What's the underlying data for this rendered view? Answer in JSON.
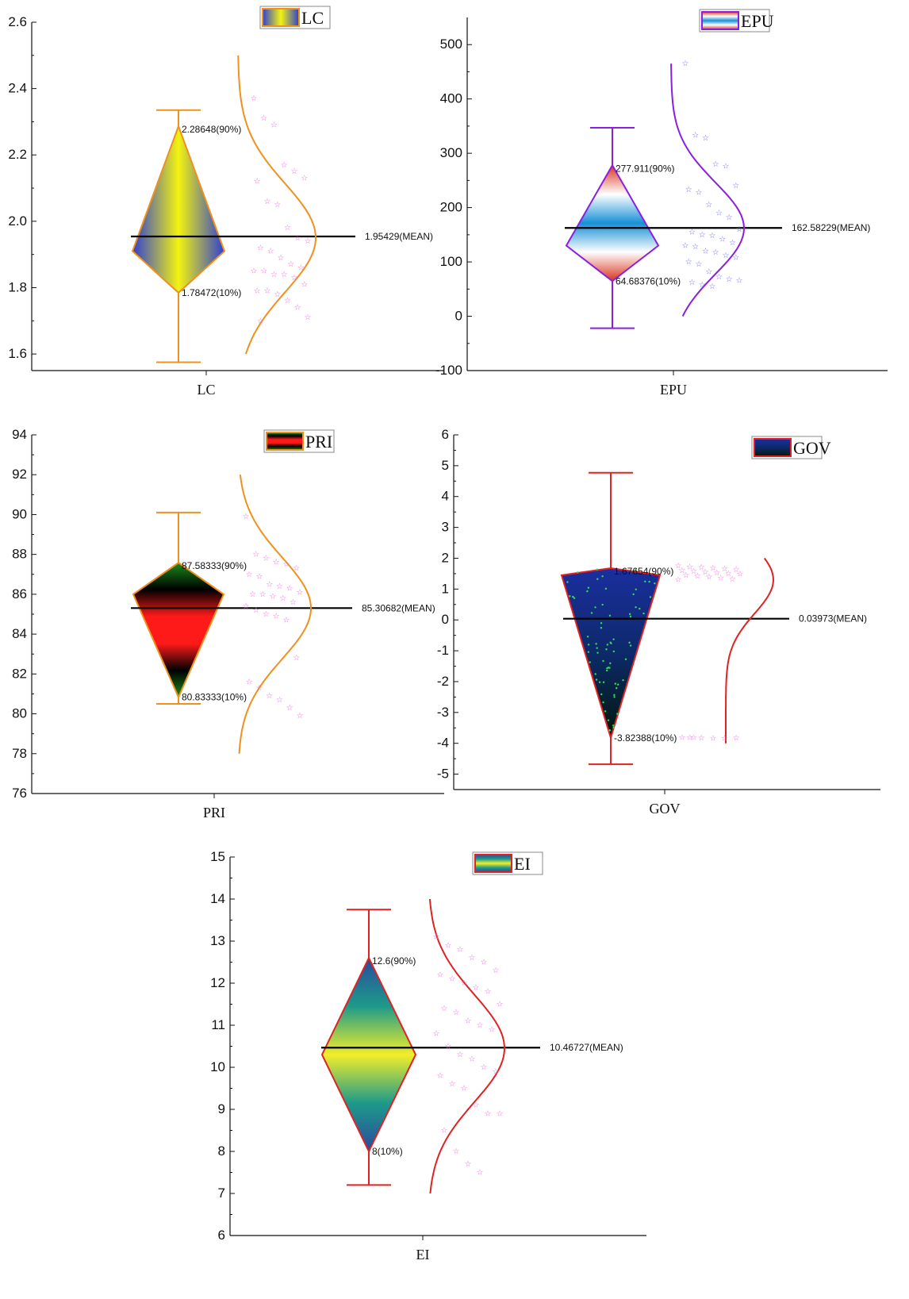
{
  "chart_data": [
    {
      "type": "raincloud",
      "category": "LC",
      "legend": "LC",
      "ylim": [
        1.55,
        2.6
      ],
      "yticks": [
        1.6,
        1.8,
        2.0,
        2.2,
        2.4,
        2.6
      ],
      "tick_decimals": 1,
      "whisker": [
        1.575,
        2.335
      ],
      "box": {
        "p10": 1.78472,
        "p90": 2.28648,
        "mid_low": 1.91,
        "mid_high": 1.91
      },
      "mean": 1.95429,
      "labels": {
        "p90": "2.28648(90%)",
        "p10": "1.78472(10%)",
        "mean": "1.95429(MEAN)"
      },
      "curve": {
        "y_from": 1.6,
        "y_to": 2.5,
        "peak": 1.95
      },
      "points": [
        2.37,
        2.31,
        2.29,
        2.17,
        2.15,
        2.13,
        2.12,
        2.06,
        2.05,
        1.98,
        1.95,
        1.94,
        1.92,
        1.91,
        1.89,
        1.87,
        1.86,
        1.85,
        1.85,
        1.84,
        1.84,
        1.83,
        1.81,
        1.79,
        1.79,
        1.78,
        1.76,
        1.74,
        1.71,
        1.7
      ],
      "colors": {
        "stroke": "#f0901e",
        "curve": "#f0901e",
        "stars": "#ee66dd",
        "gradient": [
          "#2f3fd0",
          "#f3f311",
          "#2f3fd0"
        ]
      }
    },
    {
      "type": "raincloud",
      "category": "EPU",
      "legend": "EPU",
      "ylim": [
        -100,
        550
      ],
      "yticks": [
        -100,
        0,
        100,
        200,
        300,
        400,
        500
      ],
      "tick_decimals": 0,
      "whisker": [
        -22,
        347
      ],
      "box": {
        "p10": 64.68376,
        "p90": 277.911,
        "mid_low": 130,
        "mid_high": 130
      },
      "mean": 162.58229,
      "labels": {
        "p90": "277.911(90%)",
        "p10": "64.68376(10%)",
        "mean": "162.58229(MEAN)"
      },
      "curve": {
        "y_from": 0,
        "y_to": 465,
        "peak": 162
      },
      "points": [
        465,
        333,
        328,
        280,
        276,
        240,
        233,
        228,
        205,
        190,
        182,
        160,
        155,
        150,
        148,
        142,
        135,
        130,
        128,
        120,
        118,
        112,
        108,
        100,
        96,
        82,
        72,
        68,
        66,
        62,
        58,
        55
      ],
      "colors": {
        "stroke": "#8a1fe0",
        "curve": "#8a1fe0",
        "stars": "#6b6bf0",
        "gradient": [
          "#d8331c",
          "#ffffff",
          "#1890d6",
          "#ffffff",
          "#d8331c"
        ]
      }
    },
    {
      "type": "raincloud",
      "category": "PRI",
      "legend": "PRI",
      "ylim": [
        76,
        94
      ],
      "yticks": [
        76,
        78,
        80,
        82,
        84,
        86,
        88,
        90,
        92,
        94
      ],
      "tick_decimals": 0,
      "whisker": [
        80.5,
        90.1
      ],
      "box": {
        "p10": 80.83333,
        "p90": 87.58333,
        "mid_low": 86.0,
        "mid_high": 86.0
      },
      "mean": 85.30682,
      "labels": {
        "p90": "87.58333(90%)",
        "p10": "80.83333(10%)",
        "mean": "85.30682(MEAN)"
      },
      "curve": {
        "y_from": 78,
        "y_to": 92,
        "peak": 85.3
      },
      "points": [
        89.9,
        88.0,
        87.8,
        87.6,
        87.5,
        87.3,
        87.0,
        86.9,
        86.5,
        86.4,
        86.3,
        86.1,
        86.0,
        86.0,
        85.9,
        85.8,
        85.6,
        85.4,
        85.2,
        85.0,
        84.9,
        84.7,
        82.8,
        81.6,
        81.3,
        80.9,
        80.7,
        80.3,
        79.9
      ],
      "colors": {
        "stroke": "#f0901e",
        "curve": "#f0901e",
        "stars": "#ee66dd",
        "gradient": [
          "#1b8a1b",
          "#000000",
          "#ff1a1a",
          "#ff1a1a",
          "#000000",
          "#1b8a1b"
        ]
      }
    },
    {
      "type": "raincloud",
      "category": "GOV",
      "legend": "GOV",
      "ylim": [
        -5.5,
        6
      ],
      "yticks": [
        -5,
        -4,
        -3,
        -2,
        -1,
        0,
        1,
        2,
        3,
        4,
        5,
        6
      ],
      "tick_decimals": 0,
      "whisker": [
        -4.68,
        4.77
      ],
      "box": {
        "p10": -3.82388,
        "p90": 1.67654,
        "mid_low": 1.45,
        "mid_high": 1.45
      },
      "mean": 0.03973,
      "labels": {
        "p90": "1.67654(90%)",
        "p10": "-3.82388(10%)",
        "mean": "0.03973(MEAN)"
      },
      "curve": {
        "y_from": -4.0,
        "y_to": 2.0,
        "peak": 1.3
      },
      "points": [
        1.75,
        1.72,
        1.7,
        1.68,
        1.65,
        1.62,
        1.6,
        1.58,
        1.55,
        1.52,
        1.5,
        1.48,
        1.45,
        1.42,
        1.4,
        1.35,
        1.32,
        1.3,
        -3.82,
        -3.83,
        -3.84,
        -3.84,
        -3.83,
        -3.82,
        -3.82
      ],
      "colors": {
        "stroke": "#e02222",
        "curve": "#e02222",
        "stars": "#ee66dd",
        "gradient": [
          "#1b2e9e",
          "#0d2a6a",
          "#00180a"
        ]
      }
    },
    {
      "type": "raincloud",
      "category": "EI",
      "legend": "EI",
      "ylim": [
        6,
        15
      ],
      "yticks": [
        6,
        7,
        8,
        9,
        10,
        11,
        12,
        13,
        14,
        15
      ],
      "tick_decimals": 0,
      "whisker": [
        7.2,
        13.75
      ],
      "box": {
        "p10": 8.0,
        "p90": 12.6,
        "mid_low": 10.3,
        "mid_high": 10.3
      },
      "mean": 10.46727,
      "labels": {
        "p90": "12.6(90%)",
        "p10": "8(10%)",
        "mean": "10.46727(MEAN)"
      },
      "curve": {
        "y_from": 7.0,
        "y_to": 14.0,
        "peak": 10.45
      },
      "points": [
        13.1,
        12.9,
        12.8,
        12.6,
        12.5,
        12.3,
        12.2,
        12.1,
        12.0,
        11.9,
        11.8,
        11.5,
        11.4,
        11.3,
        11.1,
        11.0,
        10.9,
        10.8,
        10.5,
        10.3,
        10.2,
        10.0,
        9.9,
        9.8,
        9.6,
        9.5,
        9.1,
        8.9,
        8.9,
        8.5,
        8.0,
        7.7,
        7.5
      ],
      "colors": {
        "stroke": "#e02222",
        "curve": "#e02222",
        "stars": "#ee66dd",
        "gradient": [
          "#2a4a9e",
          "#1d9a8a",
          "#f2ee2a",
          "#1d9a8a",
          "#2a4a9e"
        ]
      }
    }
  ]
}
